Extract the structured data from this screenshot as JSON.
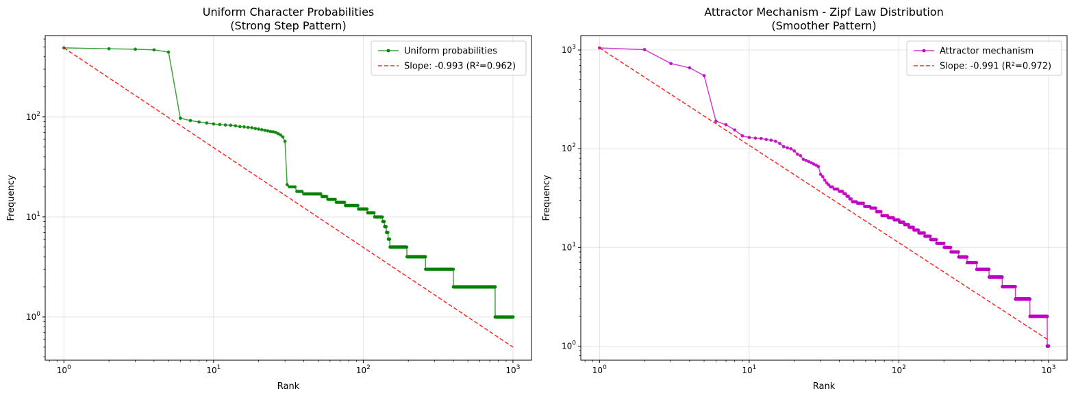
{
  "chart_data": [
    {
      "type": "line",
      "title": "Uniform Character Probabilities\n(Strong Step Pattern)",
      "xlabel": "Rank",
      "ylabel": "Frequency",
      "xscale": "log",
      "yscale": "log",
      "xlim": [
        0.75,
        1330
      ],
      "ylim": [
        0.37,
        650
      ],
      "xticks": [
        1,
        10,
        100,
        1000
      ],
      "xtick_labels": [
        "10^0",
        "10^1",
        "10^2",
        "10^3"
      ],
      "yticks": [
        1,
        10,
        100
      ],
      "ytick_labels": [
        "10^0",
        "10^1",
        "10^2"
      ],
      "grid": true,
      "legend_position": "top-right",
      "series": [
        {
          "name": "Uniform probabilities",
          "style": "line-markers",
          "color": "#008000",
          "steps": [
            [
              1,
              1,
              490
            ],
            [
              2,
              2,
              480
            ],
            [
              3,
              3,
              475
            ],
            [
              4,
              4,
              468
            ],
            [
              5,
              5,
              445
            ],
            [
              6,
              6,
              97
            ],
            [
              7,
              7,
              92
            ],
            [
              8,
              8,
              89
            ],
            [
              9,
              9,
              87
            ],
            [
              10,
              10,
              85
            ],
            [
              11,
              11,
              84
            ],
            [
              12,
              12,
              83
            ],
            [
              13,
              13,
              82.5
            ],
            [
              14,
              14,
              81.5
            ],
            [
              15,
              15,
              80
            ],
            [
              16,
              16,
              79.5
            ],
            [
              17,
              17,
              78.5
            ],
            [
              18,
              18,
              78
            ],
            [
              19,
              19,
              76.5
            ],
            [
              20,
              20,
              75.5
            ],
            [
              21,
              21,
              74.5
            ],
            [
              22,
              22,
              73.5
            ],
            [
              23,
              23,
              72.5
            ],
            [
              24,
              24,
              71.5
            ],
            [
              25,
              25,
              71
            ],
            [
              26,
              26,
              70
            ],
            [
              27,
              27,
              68
            ],
            [
              28,
              28,
              66
            ],
            [
              29,
              29,
              63
            ],
            [
              30,
              30,
              57
            ],
            [
              31,
              31,
              21
            ],
            [
              32,
              35,
              20
            ],
            [
              36,
              39,
              18
            ],
            [
              40,
              52,
              17
            ],
            [
              53,
              57,
              16
            ],
            [
              58,
              65,
              15
            ],
            [
              66,
              75,
              14
            ],
            [
              76,
              92,
              13
            ],
            [
              93,
              106,
              12
            ],
            [
              107,
              118,
              11
            ],
            [
              119,
              134,
              10
            ],
            [
              135,
              138,
              9
            ],
            [
              139,
              142,
              8
            ],
            [
              143,
              146,
              7
            ],
            [
              147,
              150,
              6
            ],
            [
              151,
              195,
              5
            ],
            [
              196,
              260,
              4
            ],
            [
              261,
              399,
              3
            ],
            [
              400,
              760,
              2
            ],
            [
              761,
              1000,
              1
            ]
          ]
        },
        {
          "name": "Slope: -0.993 (R²=0.962)",
          "style": "dashed",
          "color": "#ff0000",
          "x": [
            1,
            1000
          ],
          "y": [
            490,
            0.5
          ]
        }
      ]
    },
    {
      "type": "line",
      "title": "Attractor Mechanism - Zipf Law Distribution\n(Smoother Pattern)",
      "xlabel": "Rank",
      "ylabel": "Frequency",
      "xscale": "log",
      "yscale": "log",
      "xlim": [
        0.75,
        1330
      ],
      "ylim": [
        0.72,
        1400
      ],
      "xticks": [
        1,
        10,
        100,
        1000
      ],
      "xtick_labels": [
        "10^0",
        "10^1",
        "10^2",
        "10^3"
      ],
      "yticks": [
        1,
        10,
        100,
        1000
      ],
      "ytick_labels": [
        "10^0",
        "10^1",
        "10^2",
        "10^3"
      ],
      "grid": true,
      "legend_position": "top-right",
      "series": [
        {
          "name": "Attractor mechanism",
          "style": "line-markers",
          "color": "#c000c0",
          "steps": [
            [
              1,
              1,
              1050
            ],
            [
              2,
              2,
              1010
            ],
            [
              3,
              3,
              730
            ],
            [
              4,
              4,
              660
            ],
            [
              5,
              5,
              550
            ],
            [
              6,
              6,
              190
            ],
            [
              7,
              7,
              175
            ],
            [
              8,
              8,
              155
            ],
            [
              9,
              9,
              135
            ],
            [
              10,
              10,
              130
            ],
            [
              11,
              11,
              128
            ],
            [
              12,
              12,
              127
            ],
            [
              13,
              13,
              124
            ],
            [
              14,
              14,
              122
            ],
            [
              15,
              15,
              119
            ],
            [
              16,
              16,
              113
            ],
            [
              17,
              17,
              105
            ],
            [
              18,
              18,
              102
            ],
            [
              19,
              19,
              100
            ],
            [
              20,
              20,
              95
            ],
            [
              21,
              21,
              88
            ],
            [
              22,
              22,
              85
            ],
            [
              23,
              23,
              78
            ],
            [
              24,
              24,
              76
            ],
            [
              25,
              25,
              74
            ],
            [
              26,
              26,
              72
            ],
            [
              27,
              27,
              70
            ],
            [
              28,
              28,
              68
            ],
            [
              29,
              29,
              66
            ],
            [
              30,
              30,
              55
            ],
            [
              31,
              31,
              52
            ],
            [
              32,
              32,
              48
            ],
            [
              33,
              33,
              45
            ],
            [
              34,
              34,
              43
            ],
            [
              35,
              36,
              41
            ],
            [
              37,
              39,
              39
            ],
            [
              40,
              42,
              37
            ],
            [
              43,
              44,
              35
            ],
            [
              45,
              46,
              33
            ],
            [
              47,
              48,
              31
            ],
            [
              49,
              52,
              29
            ],
            [
              53,
              58,
              28
            ],
            [
              59,
              64,
              26
            ],
            [
              65,
              70,
              25
            ],
            [
              71,
              76,
              23
            ],
            [
              77,
              84,
              21
            ],
            [
              85,
              92,
              20
            ],
            [
              93,
              100,
              19
            ],
            [
              101,
              108,
              18
            ],
            [
              109,
              116,
              17
            ],
            [
              117,
              125,
              16
            ],
            [
              126,
              135,
              15
            ],
            [
              136,
              148,
              14
            ],
            [
              149,
              162,
              13
            ],
            [
              163,
              178,
              12
            ],
            [
              179,
              200,
              11
            ],
            [
              201,
              222,
              10
            ],
            [
              223,
              250,
              9
            ],
            [
              251,
              285,
              8
            ],
            [
              286,
              330,
              7
            ],
            [
              331,
              400,
              6
            ],
            [
              401,
              490,
              5
            ],
            [
              491,
              600,
              4
            ],
            [
              601,
              750,
              3
            ],
            [
              751,
              980,
              2
            ],
            [
              981,
              1000,
              1
            ]
          ]
        },
        {
          "name": "Slope: -0.991 (R²=0.972)",
          "style": "dashed",
          "color": "#ff0000",
          "x": [
            1,
            1000
          ],
          "y": [
            1050,
            1.15
          ]
        }
      ]
    }
  ]
}
